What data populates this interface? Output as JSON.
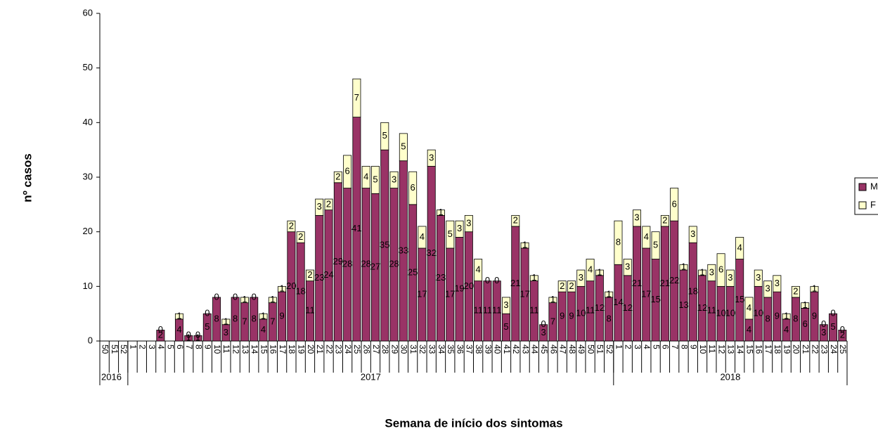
{
  "chart_data": {
    "type": "stacked_bar",
    "y_label": "nº casos",
    "x_label": "Semana de início dos sintomas",
    "groups": [
      {
        "label": "2016",
        "categories": [
          "50",
          "51",
          "52"
        ]
      },
      {
        "label": "2017",
        "categories": [
          "1",
          "2",
          "3",
          "4",
          "5",
          "6",
          "7",
          "8",
          "9",
          "10",
          "11",
          "12",
          "13",
          "14",
          "15",
          "16",
          "17",
          "18",
          "19",
          "20",
          "21",
          "22",
          "23",
          "24",
          "25",
          "26",
          "27",
          "28",
          "29",
          "30",
          "31",
          "32",
          "33",
          "34",
          "35",
          "36",
          "37",
          "38",
          "39",
          "40",
          "41",
          "42",
          "43",
          "44",
          "45",
          "46",
          "47",
          "48",
          "49",
          "50",
          "51",
          "52"
        ]
      },
      {
        "label": "2018",
        "categories": [
          "1",
          "2",
          "3",
          "4",
          "5",
          "6",
          "7",
          "8",
          "9",
          "10",
          "11",
          "12",
          "13",
          "14",
          "15",
          "16",
          "17",
          "18",
          "19",
          "20",
          "21",
          "22",
          "23",
          "24",
          "25"
        ]
      }
    ],
    "series": [
      {
        "name": "M",
        "color": "#993366",
        "values": [
          0,
          0,
          0,
          0,
          0,
          0,
          2,
          0,
          4,
          1,
          1,
          5,
          8,
          3,
          8,
          7,
          8,
          4,
          7,
          9,
          20,
          18,
          11,
          23,
          24,
          29,
          28,
          41,
          28,
          27,
          35,
          28,
          33,
          25,
          17,
          32,
          23,
          17,
          19,
          20,
          11,
          11,
          11,
          5,
          21,
          17,
          11,
          3,
          7,
          9,
          9,
          10,
          11,
          12,
          8,
          14,
          12,
          21,
          17,
          15,
          21,
          22,
          13,
          18,
          12,
          11,
          10,
          10,
          15,
          4,
          10,
          8,
          9,
          4,
          8,
          6,
          9,
          3,
          5,
          2
        ]
      },
      {
        "name": "F",
        "color": "#ffffcc",
        "values": [
          0,
          0,
          0,
          0,
          0,
          0,
          0,
          0,
          1,
          0,
          0,
          0,
          0,
          1,
          0,
          1,
          0,
          1,
          1,
          1,
          2,
          2,
          2,
          3,
          2,
          2,
          6,
          7,
          4,
          5,
          5,
          3,
          5,
          6,
          4,
          3,
          1,
          5,
          3,
          3,
          4,
          0,
          0,
          3,
          2,
          1,
          1,
          0,
          1,
          2,
          2,
          3,
          4,
          1,
          1,
          8,
          3,
          3,
          4,
          5,
          2,
          6,
          1,
          3,
          1,
          3,
          6,
          3,
          4,
          4,
          3,
          3,
          3,
          1,
          2,
          1,
          1,
          0,
          0,
          0
        ]
      }
    ],
    "ylim": [
      0,
      60
    ],
    "yticks": [
      0,
      10,
      20,
      30,
      40,
      50,
      60
    ],
    "grid": false,
    "legend": "right",
    "data_labels": true
  }
}
